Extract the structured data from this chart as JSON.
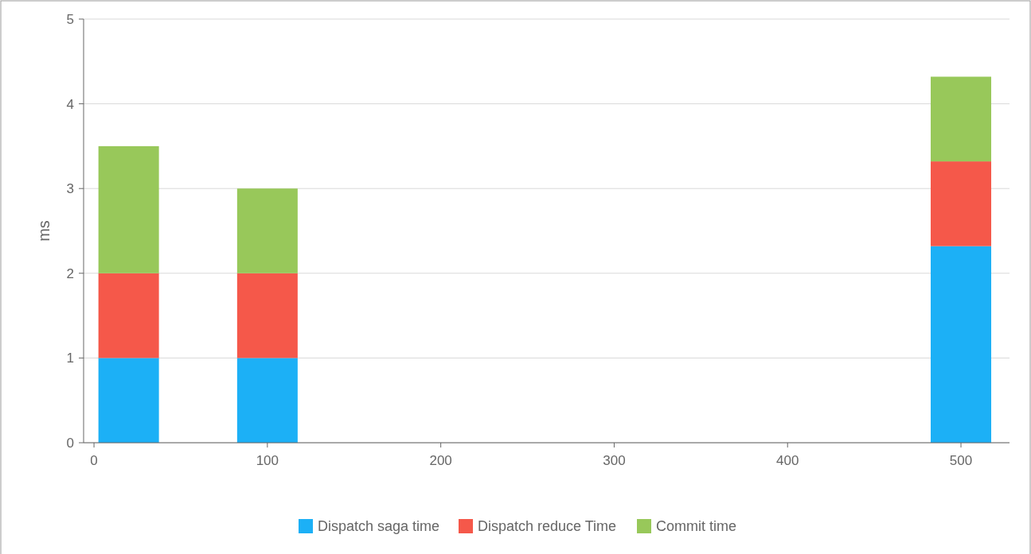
{
  "chart_data": {
    "type": "bar",
    "stacked": true,
    "ylabel": "ms",
    "x": [
      20,
      100,
      500
    ],
    "series": [
      {
        "name": "Dispatch saga time",
        "color": "#1cb0f6",
        "values": [
          1,
          1,
          2.32
        ]
      },
      {
        "name": "Dispatch reduce Time",
        "color": "#f5584a",
        "values": [
          1,
          1,
          1
        ]
      },
      {
        "name": "Commit time",
        "color": "#98c85a",
        "values": [
          1.5,
          1,
          1
        ]
      }
    ],
    "xlim": [
      -6,
      528
    ],
    "xticks": [
      0,
      100,
      200,
      300,
      400,
      500
    ],
    "ylim": [
      0,
      5
    ],
    "yticks": [
      0,
      1,
      2,
      3,
      4,
      5
    ],
    "grid": "y",
    "legend": "bottom"
  }
}
